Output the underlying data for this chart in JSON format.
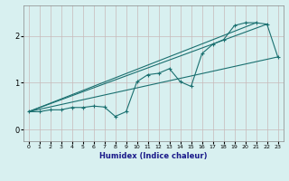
{
  "xlabel": "Humidex (Indice chaleur)",
  "bg_color": "#d8f0f0",
  "grid_color": "#c8b8b8",
  "line_color": "#1a7070",
  "xlim": [
    -0.5,
    23.5
  ],
  "ylim": [
    -0.25,
    2.65
  ],
  "xticks": [
    0,
    1,
    2,
    3,
    4,
    5,
    6,
    7,
    8,
    9,
    10,
    11,
    12,
    13,
    14,
    15,
    16,
    17,
    18,
    19,
    20,
    21,
    22,
    23
  ],
  "yticks": [
    0,
    1,
    2
  ],
  "line1_x": [
    0,
    1,
    2,
    3,
    4,
    5,
    6,
    7,
    8,
    9,
    10,
    11,
    12,
    13,
    14,
    15,
    16,
    17,
    18,
    19,
    20,
    21,
    22,
    23
  ],
  "line1_y": [
    0.38,
    0.38,
    0.42,
    0.42,
    0.47,
    0.47,
    0.5,
    0.48,
    0.28,
    0.38,
    1.02,
    1.17,
    1.2,
    1.3,
    1.02,
    0.92,
    1.62,
    1.82,
    1.92,
    2.22,
    2.28,
    2.28,
    2.25,
    1.55
  ],
  "line2_x": [
    0,
    23
  ],
  "line2_y": [
    0.38,
    1.55
  ],
  "line3_x": [
    0,
    21
  ],
  "line3_y": [
    0.38,
    2.28
  ],
  "line4_x": [
    0,
    22
  ],
  "line4_y": [
    0.38,
    2.25
  ]
}
